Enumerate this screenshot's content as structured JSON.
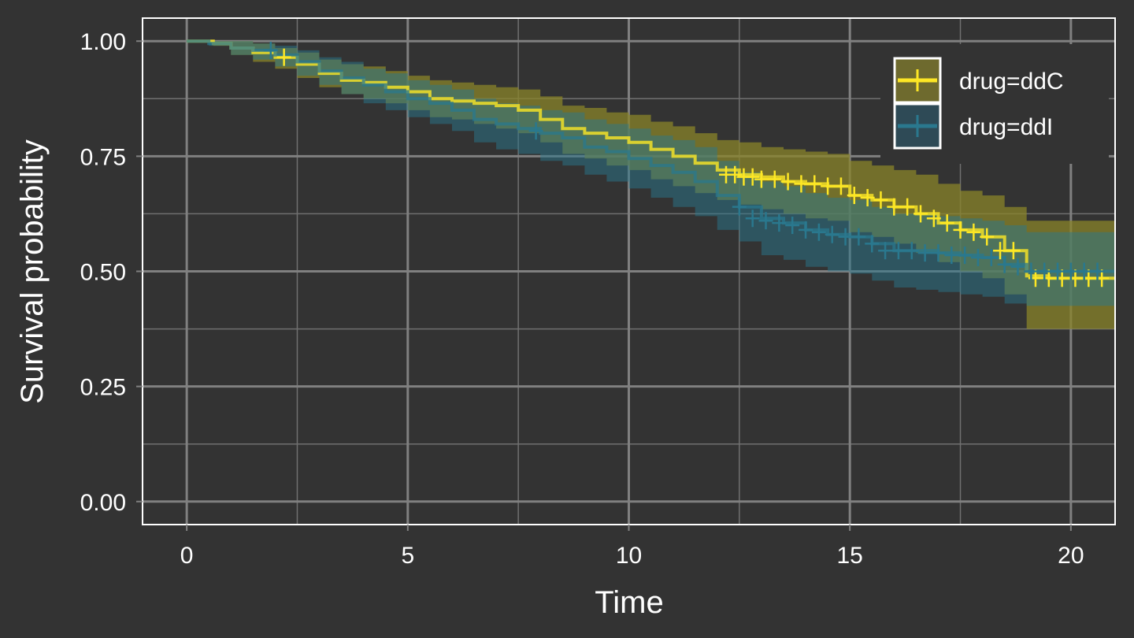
{
  "chart_data": {
    "type": "line",
    "subtype": "kaplan-meier-step",
    "xlabel": "Time",
    "ylabel": "Survival probability",
    "xlim": [
      -1,
      21
    ],
    "ylim": [
      -0.05,
      1.05
    ],
    "x_ticks": [
      0,
      5,
      10,
      15,
      20
    ],
    "x_tick_labels": [
      "0",
      "5",
      "10",
      "15",
      "20"
    ],
    "y_ticks": [
      0,
      0.25,
      0.5,
      0.75,
      1
    ],
    "y_tick_labels": [
      "0.00",
      "0.25",
      "0.50",
      "0.75",
      "1.00"
    ],
    "grid": true,
    "legend_position": "top-right",
    "colors": {
      "background": "#333333",
      "grid_major": "#808080",
      "grid_minor": "#707070",
      "panel_border": "#ffffff"
    },
    "series": [
      {
        "name": "drug=ddC",
        "color": "#fde725",
        "band_color": "#8a8429",
        "x": [
          0,
          0.6,
          1.0,
          1.5,
          2.0,
          2.5,
          3.0,
          3.5,
          4.0,
          4.5,
          5.0,
          5.5,
          6.0,
          6.5,
          7.0,
          7.5,
          8.0,
          8.5,
          9.0,
          9.5,
          10.0,
          10.5,
          11.0,
          11.5,
          12.0,
          12.5,
          13.0,
          13.5,
          14.0,
          14.5,
          15.0,
          15.5,
          16.0,
          16.5,
          17.0,
          17.5,
          18.0,
          18.5,
          19.0,
          19.5,
          20.0,
          21.0
        ],
        "y": [
          1.0,
          0.995,
          0.985,
          0.975,
          0.965,
          0.95,
          0.93,
          0.915,
          0.91,
          0.9,
          0.89,
          0.875,
          0.87,
          0.865,
          0.86,
          0.85,
          0.83,
          0.81,
          0.8,
          0.79,
          0.78,
          0.765,
          0.75,
          0.735,
          0.72,
          0.71,
          0.705,
          0.695,
          0.69,
          0.685,
          0.665,
          0.655,
          0.64,
          0.625,
          0.605,
          0.59,
          0.575,
          0.545,
          0.49,
          0.485,
          0.485,
          0.485
        ],
        "lower": [
          1.0,
          0.99,
          0.97,
          0.955,
          0.94,
          0.92,
          0.9,
          0.885,
          0.875,
          0.865,
          0.85,
          0.835,
          0.83,
          0.82,
          0.81,
          0.8,
          0.78,
          0.755,
          0.745,
          0.73,
          0.72,
          0.7,
          0.685,
          0.67,
          0.655,
          0.645,
          0.635,
          0.625,
          0.615,
          0.61,
          0.585,
          0.575,
          0.56,
          0.54,
          0.52,
          0.5,
          0.485,
          0.45,
          0.375,
          0.375,
          0.375,
          0.375
        ],
        "upper": [
          1.0,
          1.0,
          1.0,
          0.995,
          0.985,
          0.975,
          0.96,
          0.95,
          0.945,
          0.935,
          0.925,
          0.915,
          0.91,
          0.905,
          0.9,
          0.895,
          0.88,
          0.86,
          0.855,
          0.845,
          0.84,
          0.825,
          0.815,
          0.8,
          0.785,
          0.78,
          0.77,
          0.765,
          0.76,
          0.755,
          0.74,
          0.73,
          0.72,
          0.71,
          0.69,
          0.675,
          0.665,
          0.64,
          0.61,
          0.61,
          0.61,
          0.61
        ],
        "censor_x": [
          2.2,
          12.2,
          12.4,
          12.6,
          12.8,
          13.0,
          13.3,
          13.6,
          13.9,
          14.2,
          14.5,
          14.8,
          15.1,
          15.4,
          15.7,
          16.0,
          16.3,
          16.6,
          16.9,
          17.2,
          17.5,
          17.8,
          18.1,
          18.4,
          18.7,
          19.2,
          19.5,
          19.8,
          20.1,
          20.4,
          20.7
        ],
        "censor_y": [
          0.965,
          0.71,
          0.71,
          0.705,
          0.705,
          0.7,
          0.7,
          0.695,
          0.69,
          0.69,
          0.685,
          0.685,
          0.665,
          0.66,
          0.655,
          0.64,
          0.64,
          0.625,
          0.615,
          0.605,
          0.59,
          0.585,
          0.575,
          0.545,
          0.545,
          0.485,
          0.485,
          0.485,
          0.485,
          0.485,
          0.485
        ]
      },
      {
        "name": "drug=ddI",
        "color": "#2a788e",
        "band_color": "#2a788e",
        "x": [
          0,
          0.5,
          1.0,
          1.5,
          2.0,
          2.5,
          3.0,
          3.5,
          4.0,
          4.5,
          5.0,
          5.5,
          6.0,
          6.5,
          7.0,
          7.5,
          8.0,
          8.5,
          9.0,
          9.5,
          10.0,
          10.5,
          11.0,
          11.5,
          12.0,
          12.5,
          13.0,
          13.5,
          14.0,
          14.5,
          15.0,
          15.5,
          16.0,
          16.5,
          17.0,
          17.5,
          18.0,
          18.5,
          19.0,
          19.5,
          20.0,
          21.0
        ],
        "y": [
          1.0,
          0.995,
          0.985,
          0.98,
          0.97,
          0.955,
          0.935,
          0.92,
          0.905,
          0.89,
          0.875,
          0.865,
          0.85,
          0.83,
          0.82,
          0.81,
          0.8,
          0.79,
          0.77,
          0.76,
          0.745,
          0.73,
          0.715,
          0.695,
          0.665,
          0.64,
          0.615,
          0.605,
          0.59,
          0.58,
          0.575,
          0.56,
          0.545,
          0.545,
          0.54,
          0.535,
          0.53,
          0.515,
          0.5,
          0.5,
          0.5,
          0.5
        ],
        "lower": [
          1.0,
          0.99,
          0.97,
          0.96,
          0.945,
          0.925,
          0.905,
          0.885,
          0.865,
          0.85,
          0.835,
          0.82,
          0.805,
          0.78,
          0.765,
          0.755,
          0.74,
          0.73,
          0.71,
          0.695,
          0.68,
          0.66,
          0.64,
          0.62,
          0.59,
          0.565,
          0.535,
          0.525,
          0.51,
          0.5,
          0.495,
          0.48,
          0.465,
          0.46,
          0.455,
          0.45,
          0.445,
          0.43,
          0.425,
          0.425,
          0.425,
          0.425
        ],
        "upper": [
          1.0,
          1.0,
          1.0,
          0.995,
          0.99,
          0.98,
          0.965,
          0.955,
          0.94,
          0.93,
          0.915,
          0.905,
          0.895,
          0.875,
          0.865,
          0.86,
          0.85,
          0.845,
          0.83,
          0.82,
          0.81,
          0.795,
          0.785,
          0.77,
          0.74,
          0.715,
          0.695,
          0.685,
          0.67,
          0.66,
          0.655,
          0.64,
          0.625,
          0.625,
          0.62,
          0.615,
          0.61,
          0.6,
          0.585,
          0.585,
          0.585,
          0.585
        ],
        "censor_x": [
          1.9,
          7.9,
          12.5,
          12.8,
          13.1,
          13.4,
          13.7,
          14.0,
          14.3,
          14.6,
          14.9,
          15.2,
          15.5,
          15.8,
          16.1,
          16.4,
          16.7,
          17.0,
          17.3,
          17.6,
          17.9,
          18.2,
          18.5,
          18.8,
          19.1,
          19.4,
          19.7,
          20.0,
          20.3,
          20.6
        ],
        "censor_y": [
          0.98,
          0.805,
          0.64,
          0.615,
          0.61,
          0.605,
          0.6,
          0.59,
          0.585,
          0.58,
          0.575,
          0.575,
          0.56,
          0.545,
          0.545,
          0.545,
          0.54,
          0.54,
          0.535,
          0.535,
          0.53,
          0.53,
          0.515,
          0.51,
          0.5,
          0.5,
          0.5,
          0.5,
          0.5,
          0.5
        ]
      }
    ]
  }
}
